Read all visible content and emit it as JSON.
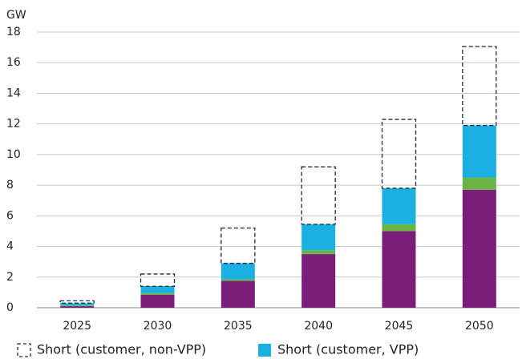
{
  "chart_data": {
    "type": "stacked_bar",
    "y_label": "GW",
    "categories": [
      "2025",
      "2030",
      "2035",
      "2040",
      "2045",
      "2050"
    ],
    "series": [
      {
        "color": "#7b1e7a",
        "values": [
          0.1,
          0.85,
          1.75,
          3.5,
          5.0,
          7.7
        ]
      },
      {
        "color": "#6ab344",
        "values": [
          0.05,
          0.1,
          0.1,
          0.25,
          0.45,
          0.8
        ]
      },
      {
        "name": "Short (customer, VPP)",
        "color": "#1ab0e0",
        "values": [
          0.15,
          0.45,
          1.05,
          1.7,
          2.35,
          3.4
        ]
      },
      {
        "name": "Short (customer, non-VPP)",
        "color": "#1a2a4a",
        "dashed": true,
        "values": [
          0.15,
          0.8,
          2.3,
          3.75,
          4.5,
          5.15
        ]
      }
    ],
    "ylim": [
      0,
      18
    ],
    "yticks": [
      0,
      2,
      4,
      6,
      8,
      10,
      12,
      14,
      16,
      18
    ],
    "grid": true
  }
}
